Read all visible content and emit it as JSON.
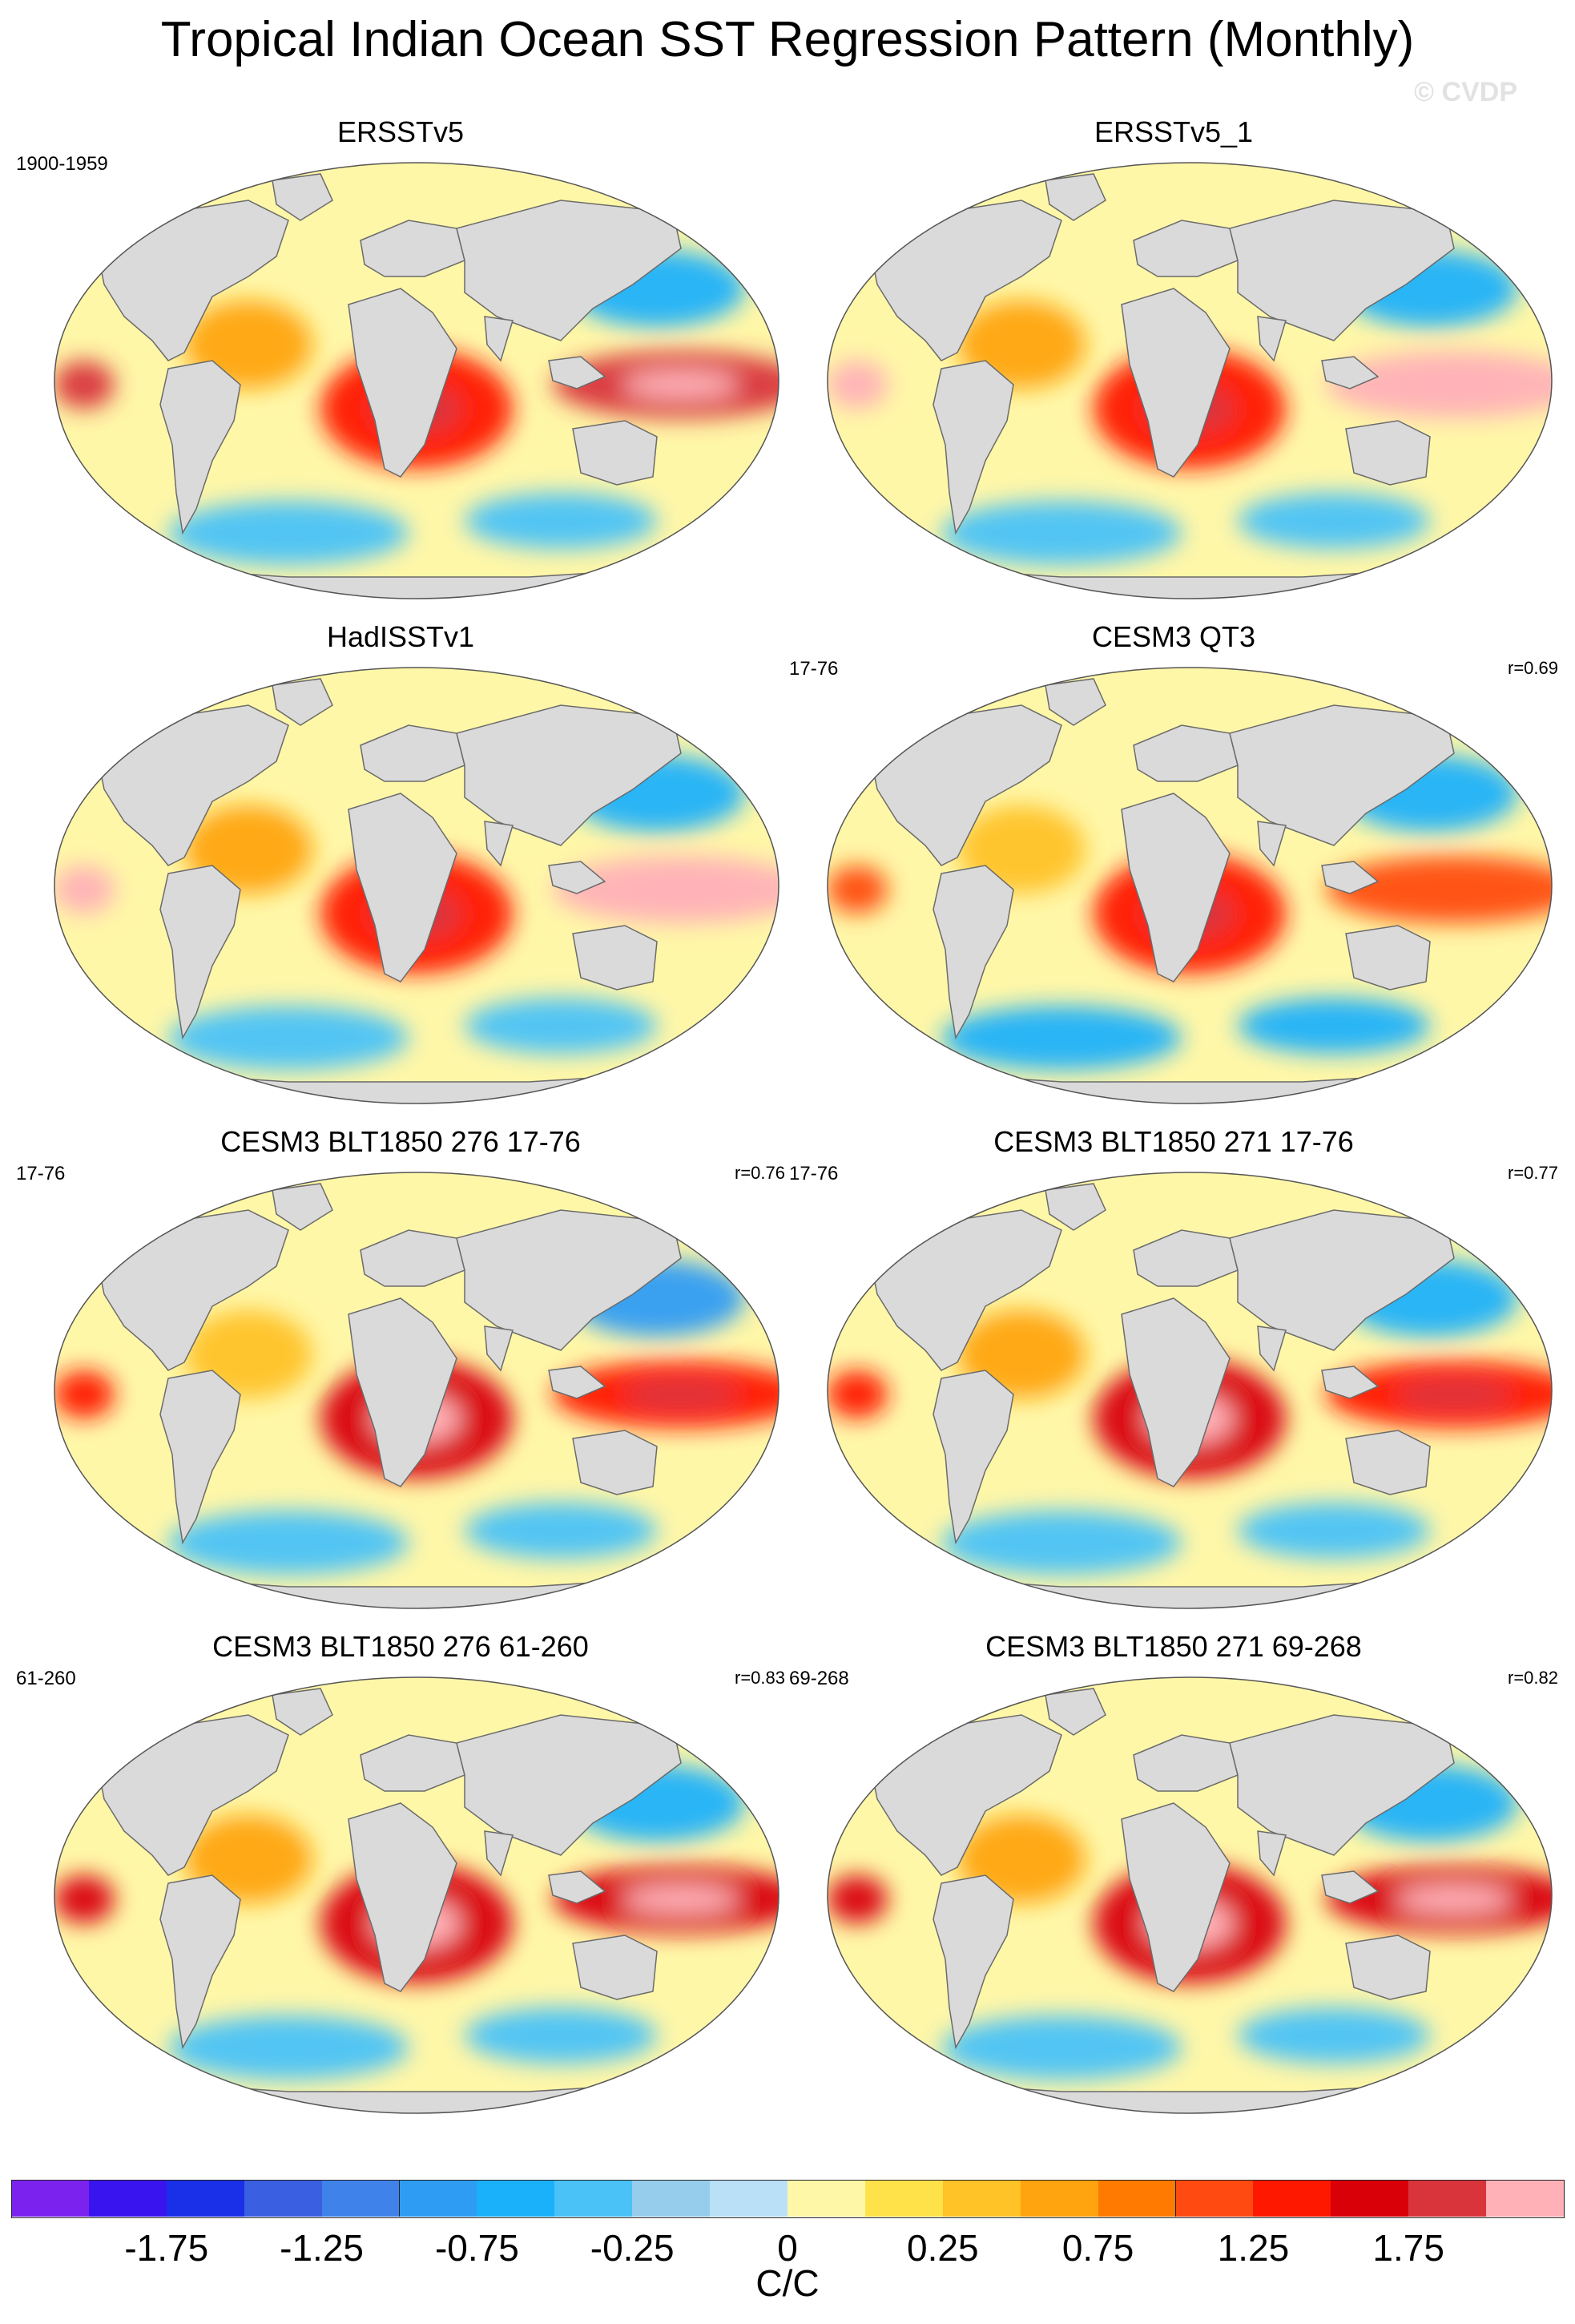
{
  "figure": {
    "title": "Tropical Indian Ocean SST Regression Pattern (Monthly)",
    "watermark": "© CVDP"
  },
  "colors": {
    "land": "#dadada",
    "ocean_default": "#fff7a8",
    "coast": "#6b6b6b"
  },
  "panels": [
    {
      "title": "ERSSTv5",
      "period": "1900-1959",
      "corr": ""
    },
    {
      "title": "ERSSTv5_1",
      "period": "",
      "corr": ""
    },
    {
      "title": "HadISSTv1",
      "period": "",
      "corr": ""
    },
    {
      "title": "CESM3 QT3",
      "period": "17-76",
      "corr": "r=0.69"
    },
    {
      "title": "CESM3 BLT1850 276 17-76",
      "period": "17-76",
      "corr": "r=0.76"
    },
    {
      "title": "CESM3 BLT1850 271 17-76",
      "period": "17-76",
      "corr": "r=0.77"
    },
    {
      "title": "CESM3 BLT1850 276 61-260",
      "period": "61-260",
      "corr": "r=0.83"
    },
    {
      "title": "CESM3 BLT1850 271 69-268",
      "period": "69-268",
      "corr": "r=0.82"
    }
  ],
  "chart_data": {
    "type": "heatmap",
    "title": "Tropical Indian Ocean SST Regression Pattern (Monthly)",
    "projection": "Robinson (global)",
    "units": "C/C",
    "colorbar": {
      "levels": [
        -2.0,
        -1.75,
        -1.5,
        -1.25,
        -1.0,
        -0.75,
        -0.5,
        -0.25,
        -0.1,
        0,
        0.1,
        0.25,
        0.5,
        0.75,
        1.0,
        1.25,
        1.5,
        1.75,
        2.0
      ],
      "tick_labels": [
        "-1.75",
        "-1.25",
        "-0.75",
        "-0.25",
        "0",
        "0.25",
        "0.75",
        "1.25",
        "1.75"
      ],
      "tick_values": [
        -1.75,
        -1.25,
        -0.75,
        -0.25,
        0,
        0.25,
        0.75,
        1.25,
        1.75
      ],
      "colors": [
        "#7b22ef",
        "#3a14ef",
        "#1a2fe8",
        "#3a5fe0",
        "#3f82ea",
        "#2f9cf3",
        "#1ab1fa",
        "#4ac2f8",
        "#97cdec",
        "#b9e0f7",
        "#fff7a8",
        "#ffe24a",
        "#ffc227",
        "#ffa40e",
        "#ff7a00",
        "#ff4b12",
        "#ff1800",
        "#d90008",
        "#d9343c",
        "#ffb1b7"
      ]
    },
    "panels": [
      {
        "name": "ERSSTv5",
        "regions": [
          {
            "region": "Tropical Indian Ocean",
            "value": 1.25
          },
          {
            "region": "Eastern tropical Pacific",
            "value": 1.75
          },
          {
            "region": "North Pacific",
            "value": -0.75
          },
          {
            "region": "Southern Ocean",
            "value": -0.5
          },
          {
            "region": "Atlantic",
            "value": 0.5
          }
        ]
      },
      {
        "name": "ERSSTv5_1",
        "regions": [
          {
            "region": "Tropical Indian Ocean",
            "value": 1.25
          },
          {
            "region": "Eastern tropical Pacific",
            "value": 2.0
          },
          {
            "region": "North Pacific",
            "value": -0.75
          },
          {
            "region": "Southern Ocean",
            "value": -0.5
          },
          {
            "region": "Atlantic",
            "value": 0.5
          }
        ]
      },
      {
        "name": "HadISSTv1",
        "regions": [
          {
            "region": "Tropical Indian Ocean",
            "value": 1.25
          },
          {
            "region": "Eastern tropical Pacific",
            "value": 2.0
          },
          {
            "region": "North Pacific",
            "value": -0.75
          },
          {
            "region": "Southern Ocean",
            "value": -0.5
          },
          {
            "region": "Atlantic",
            "value": 0.5
          }
        ]
      },
      {
        "name": "CESM3 QT3",
        "regions": [
          {
            "region": "Tropical Indian Ocean",
            "value": 1.25
          },
          {
            "region": "Eastern tropical Pacific",
            "value": 1.0
          },
          {
            "region": "North Pacific",
            "value": -0.75
          },
          {
            "region": "Southern Ocean",
            "value": -0.75
          },
          {
            "region": "Atlantic",
            "value": 0.25
          }
        ]
      },
      {
        "name": "CESM3 BLT1850 276 17-76",
        "regions": [
          {
            "region": "Tropical Indian Ocean",
            "value": 1.5
          },
          {
            "region": "Eastern tropical Pacific",
            "value": 1.25
          },
          {
            "region": "North Pacific",
            "value": -1.0
          },
          {
            "region": "Southern Ocean",
            "value": -0.5
          },
          {
            "region": "Atlantic",
            "value": 0.25
          }
        ]
      },
      {
        "name": "CESM3 BLT1850 271 17-76",
        "regions": [
          {
            "region": "Tropical Indian Ocean",
            "value": 1.5
          },
          {
            "region": "Eastern tropical Pacific",
            "value": 1.25
          },
          {
            "region": "North Pacific",
            "value": -0.75
          },
          {
            "region": "Southern Ocean",
            "value": -0.5
          },
          {
            "region": "Atlantic",
            "value": 0.5
          }
        ]
      },
      {
        "name": "CESM3 BLT1850 276 61-260",
        "regions": [
          {
            "region": "Tropical Indian Ocean",
            "value": 1.5
          },
          {
            "region": "Eastern tropical Pacific",
            "value": 1.5
          },
          {
            "region": "North Pacific",
            "value": -0.75
          },
          {
            "region": "Southern Ocean",
            "value": -0.5
          },
          {
            "region": "Atlantic",
            "value": 0.5
          }
        ]
      },
      {
        "name": "CESM3 BLT1850 271 69-268",
        "regions": [
          {
            "region": "Tropical Indian Ocean",
            "value": 1.5
          },
          {
            "region": "Eastern tropical Pacific",
            "value": 1.5
          },
          {
            "region": "North Pacific",
            "value": -0.75
          },
          {
            "region": "Southern Ocean",
            "value": -0.5
          },
          {
            "region": "Atlantic",
            "value": 0.5
          }
        ]
      }
    ]
  }
}
